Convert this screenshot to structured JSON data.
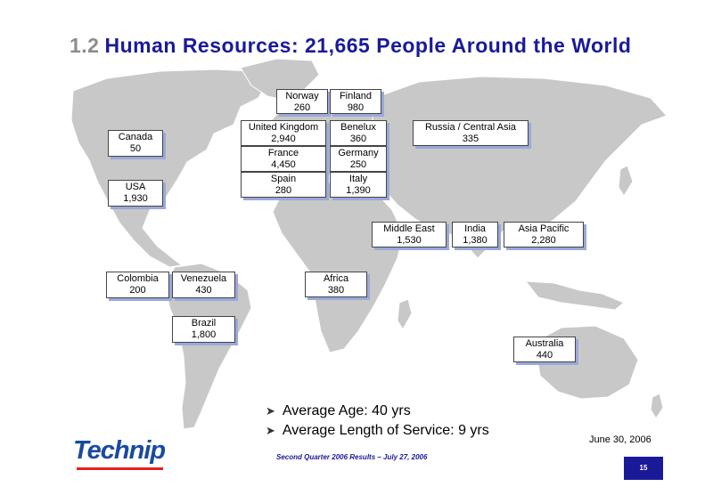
{
  "title": {
    "number": "1.2",
    "text": "Human Resources: 21,665 People Around the World"
  },
  "regions": [
    {
      "name": "Canada",
      "value": "50"
    },
    {
      "name": "USA",
      "value": "1,930"
    },
    {
      "name": "Colombia",
      "value": "200"
    },
    {
      "name": "Venezuela",
      "value": "430"
    },
    {
      "name": "Brazil",
      "value": "1,800"
    },
    {
      "name": "Norway",
      "value": "260"
    },
    {
      "name": "Finland",
      "value": "980"
    },
    {
      "name": "United Kingdom",
      "value": "2,940"
    },
    {
      "name": "Benelux",
      "value": "360"
    },
    {
      "name": "France",
      "value": "4,450"
    },
    {
      "name": "Germany",
      "value": "250"
    },
    {
      "name": "Spain",
      "value": "280"
    },
    {
      "name": "Italy",
      "value": "1,390"
    },
    {
      "name": "Russia / Central Asia",
      "value": "335"
    },
    {
      "name": "Middle East",
      "value": "1,530"
    },
    {
      "name": "India",
      "value": "1,380"
    },
    {
      "name": "Asia Pacific",
      "value": "2,280"
    },
    {
      "name": "Africa",
      "value": "380"
    },
    {
      "name": "Australia",
      "value": "440"
    }
  ],
  "bullets": [
    "Average Age: 40 yrs",
    "Average Length of Service: 9 yrs"
  ],
  "date": "June 30, 2006",
  "logo": "Technip",
  "footer": "Second Quarter 2006 Results – July 27, 2006",
  "page_number": "15",
  "colors": {
    "title": "#1a1a99",
    "title_number": "#8c8c8c",
    "land": "#c8c8c8",
    "box_shadow": "#9aa9d8",
    "logo": "#1a4aa0",
    "logo_accent": "#e2231a"
  }
}
